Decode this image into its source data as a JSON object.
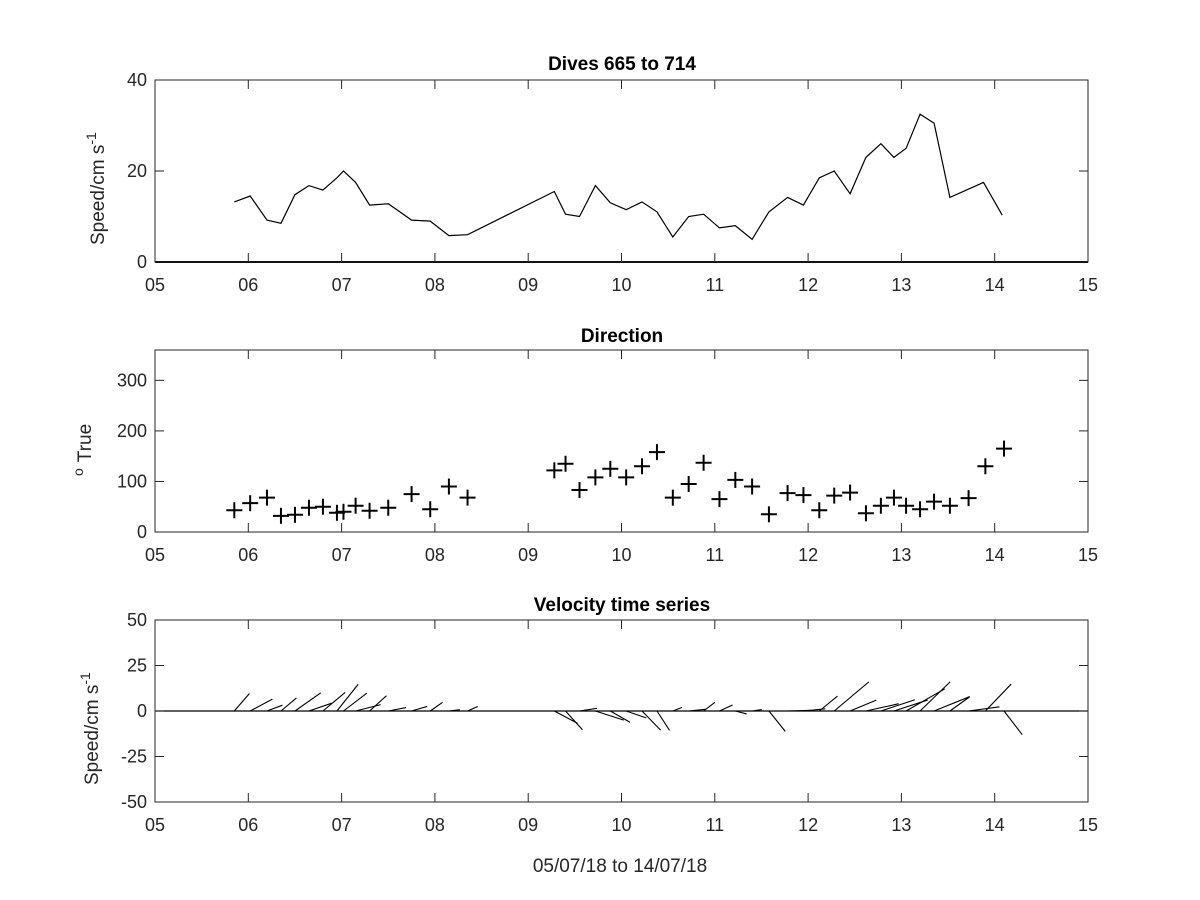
{
  "x_axis": {
    "label": "05/07/18 to 14/07/18",
    "ticks": [
      5,
      6,
      7,
      8,
      9,
      10,
      11,
      12,
      13,
      14,
      15
    ],
    "tick_labels": [
      "05",
      "06",
      "07",
      "08",
      "09",
      "10",
      "11",
      "12",
      "13",
      "14",
      "15"
    ],
    "range": [
      5,
      15
    ]
  },
  "chart_data": [
    {
      "type": "line",
      "title": "Dives 665 to 714",
      "ylabel_main": "Speed/cm s",
      "ylabel_superscript": "-1",
      "ylim": [
        0,
        40
      ],
      "yticks": [
        0,
        20,
        40
      ],
      "ytick_labels": [
        "0",
        "20",
        "40"
      ],
      "x": [
        5.85,
        6.02,
        6.2,
        6.35,
        6.5,
        6.65,
        6.8,
        6.95,
        7.02,
        7.15,
        7.3,
        7.5,
        7.75,
        7.95,
        8.15,
        8.35,
        9.28,
        9.4,
        9.55,
        9.72,
        9.88,
        10.05,
        10.22,
        10.38,
        10.55,
        10.72,
        10.88,
        11.05,
        11.22,
        11.4,
        11.58,
        11.78,
        11.95,
        12.12,
        12.28,
        12.45,
        12.62,
        12.78,
        12.92,
        13.05,
        13.2,
        13.35,
        13.52,
        13.88,
        14.08
      ],
      "y": [
        13.2,
        14.5,
        9.2,
        8.5,
        14.8,
        16.8,
        15.8,
        18.5,
        20,
        17.5,
        12.5,
        12.8,
        9.2,
        9,
        5.8,
        6,
        15.5,
        10.5,
        10,
        16.8,
        13,
        11.5,
        13.2,
        11,
        5.5,
        10,
        10.5,
        7.5,
        8,
        5,
        11,
        14.2,
        12.5,
        18.5,
        20,
        15,
        23,
        26,
        23,
        25,
        32.5,
        30.5,
        14.2,
        17.5,
        10.3
      ],
      "color": "#000000"
    },
    {
      "type": "scatter",
      "title": "Direction",
      "ylabel_main": "True",
      "ylabel_superscript": "o",
      "ylim": [
        0,
        360
      ],
      "yticks": [
        0,
        100,
        200,
        300
      ],
      "ytick_labels": [
        "0",
        "100",
        "200",
        "300"
      ],
      "x": [
        5.85,
        6.02,
        6.2,
        6.35,
        6.5,
        6.65,
        6.8,
        6.95,
        7.02,
        7.15,
        7.3,
        7.5,
        7.75,
        7.95,
        8.15,
        8.35,
        9.28,
        9.4,
        9.55,
        9.72,
        9.88,
        10.05,
        10.22,
        10.38,
        10.55,
        10.72,
        10.88,
        11.05,
        11.22,
        11.4,
        11.58,
        11.78,
        11.95,
        12.12,
        12.28,
        12.45,
        12.62,
        12.78,
        12.92,
        13.05,
        13.2,
        13.35,
        13.52,
        13.72,
        13.9,
        14.1
      ],
      "y": [
        43,
        57,
        68,
        32,
        34,
        48,
        50,
        38,
        40,
        52,
        42,
        48,
        75,
        45,
        90,
        68,
        122,
        135,
        83,
        108,
        125,
        108,
        130,
        158,
        68,
        95,
        137,
        65,
        103,
        90,
        35,
        77,
        73,
        43,
        72,
        78,
        37,
        52,
        68,
        52,
        45,
        60,
        52,
        67,
        130,
        165
      ],
      "marker": "+",
      "color": "#000000"
    },
    {
      "type": "stick",
      "title": "Velocity time series",
      "ylabel_main": "Speed/cm s",
      "ylabel_superscript": "-1",
      "ylim": [
        -50,
        50
      ],
      "yticks": [
        -50,
        -25,
        0,
        25,
        50
      ],
      "ytick_labels": [
        "-50",
        "-25",
        "0",
        "25",
        "50"
      ],
      "x": [
        5.85,
        6.02,
        6.2,
        6.35,
        6.5,
        6.65,
        6.8,
        6.95,
        7.02,
        7.15,
        7.3,
        7.5,
        7.75,
        7.95,
        8.15,
        8.35,
        9.28,
        9.4,
        9.55,
        9.72,
        9.88,
        10.05,
        10.22,
        10.38,
        10.55,
        10.72,
        10.88,
        11.05,
        11.22,
        11.4,
        11.58,
        11.78,
        11.95,
        12.12,
        12.28,
        12.45,
        12.62,
        12.78,
        12.92,
        13.05,
        13.2,
        13.35,
        13.52,
        13.72,
        13.9,
        14.1
      ],
      "u": [
        8.3,
        12.2,
        8.5,
        8.5,
        14.2,
        12.5,
        12.2,
        11.7,
        12.8,
        13.8,
        9.3,
        9.8,
        8.6,
        6.8,
        6.0,
        5.6,
        12.8,
        9.3,
        9.6,
        15.6,
        10.8,
        11.0,
        10.2,
        6.9,
        5.1,
        9.7,
        6.2,
        7.2,
        6.2,
        5.3,
        9.0,
        13.0,
        12.0,
        10.0,
        19.0,
        14.4,
        18.0,
        18.7,
        18.5,
        21.3,
        16.5,
        19.3,
        11.0,
        17.0,
        14.2,
        10.0
      ],
      "v": [
        9.6,
        6.5,
        3.2,
        7.2,
        10.0,
        4.3,
        10.2,
        14.7,
        9.8,
        3.5,
        8.4,
        1.9,
        2.5,
        4.8,
        0.7,
        2.5,
        -6.8,
        -10.3,
        1.5,
        -5.0,
        -6.2,
        -3.8,
        -10.5,
        -10.6,
        2.0,
        1.0,
        4.8,
        3.3,
        -1.6,
        0.8,
        -11.2,
        0.4,
        1.2,
        8.2,
        16.0,
        6.0,
        4.0,
        6.2,
        6.0,
        12.2,
        16.0,
        7.8,
        7.9,
        2.3,
        14.8,
        -13.0
      ],
      "color": "#000000"
    }
  ]
}
